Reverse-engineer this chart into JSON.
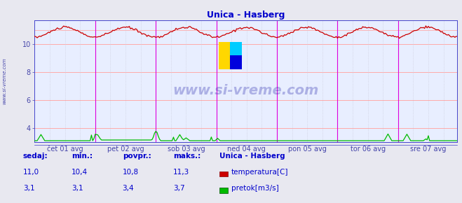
{
  "title": "Unica - Hasberg",
  "title_color": "#0000cc",
  "bg_color": "#e8e8f0",
  "plot_bg_color": "#e8eeff",
  "grid_color_h": "#ffaaaa",
  "grid_color_v_major": "#dd00dd",
  "grid_color_v_minor": "#c8c8d8",
  "ylim": [
    3.0,
    11.7
  ],
  "yticks": [
    4,
    6,
    8,
    10
  ],
  "x_labels": [
    "čet 01 avg",
    "pet 02 avg",
    "sob 03 avg",
    "ned 04 avg",
    "pon 05 avg",
    "tor 06 avg",
    "sre 07 avg"
  ],
  "n_points": 336,
  "temp_color": "#cc0000",
  "flow_color": "#00bb00",
  "watermark": "www.si-vreme.com",
  "watermark_color": "#2222aa",
  "legend_title": "Unica - Hasberg",
  "legend_items": [
    "temperatura[C]",
    "pretok[m3/s]"
  ],
  "legend_colors": [
    "#cc0000",
    "#00bb00"
  ],
  "table_headers": [
    "sedaj:",
    "min.:",
    "povpr.:",
    "maks.:"
  ],
  "table_temp": [
    "11,0",
    "10,4",
    "10,8",
    "11,3"
  ],
  "table_flow": [
    "3,1",
    "3,1",
    "3,4",
    "3,7"
  ],
  "text_color": "#0000cc",
  "sidebar_text": "www.si-vreme.com",
  "sidebar_color": "#4444aa",
  "axis_color": "#4444aa",
  "spine_color": "#4444cc"
}
